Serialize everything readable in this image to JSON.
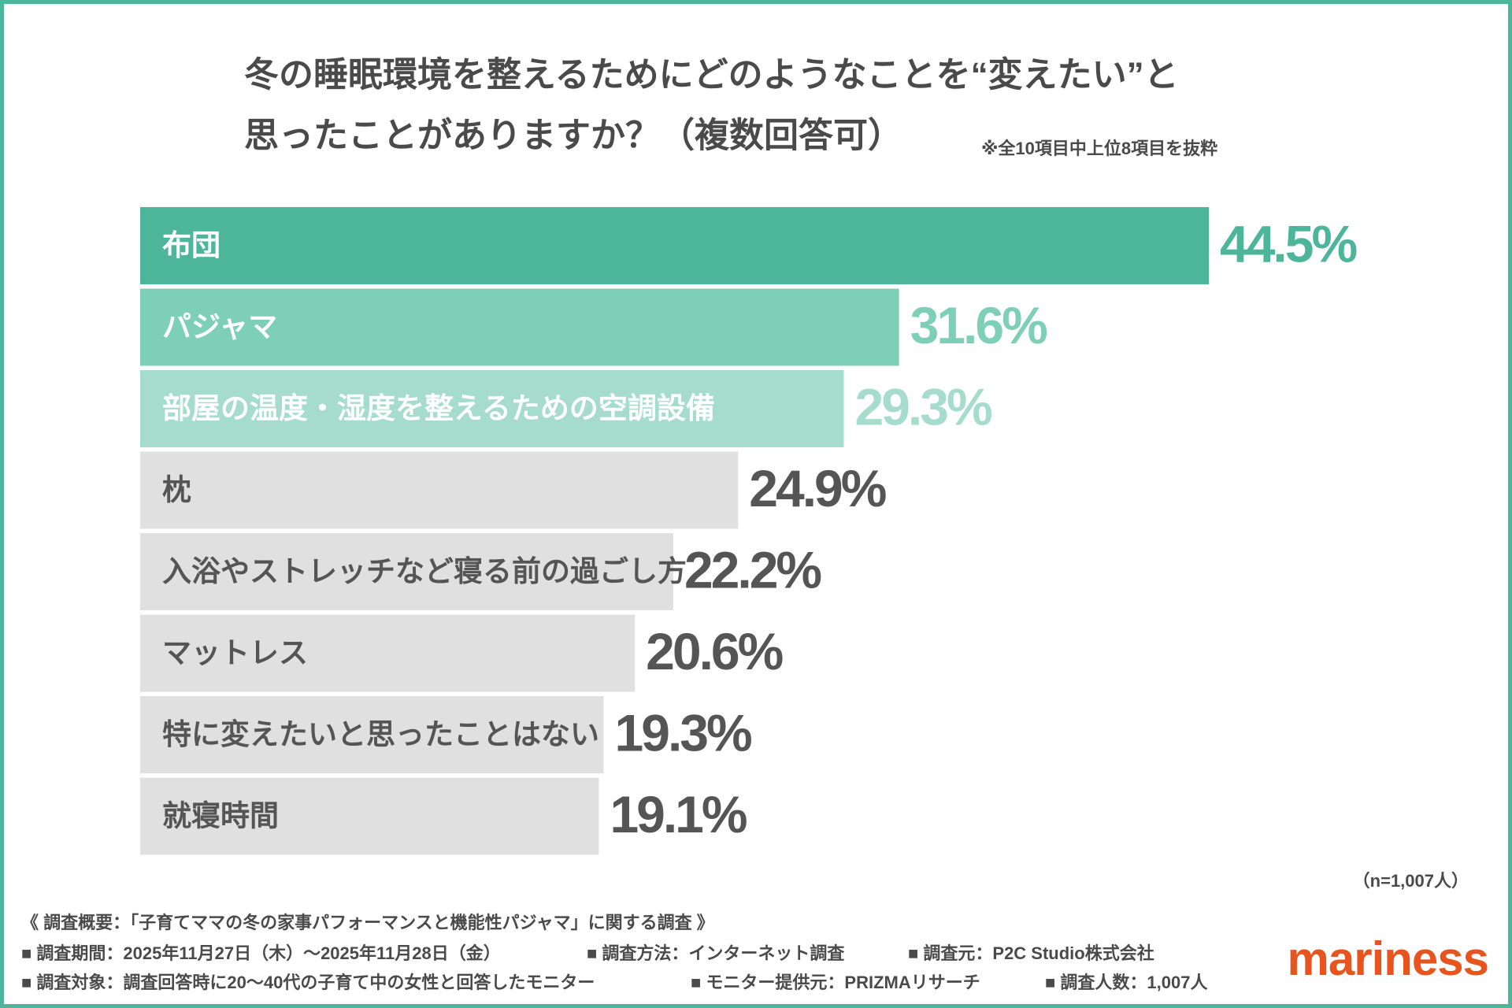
{
  "chart_data": {
    "type": "bar",
    "orientation": "horizontal",
    "title": [
      "冬の睡眠環境を整えるためにどのようなことを“変えたい”と",
      "思ったことがありますか？（複数回答可）"
    ],
    "subtitle": "※全10項目中上位8項目を抜粋",
    "categories": [
      "布団",
      "パジャマ",
      "部屋の温度・湿度を整えるための空調設備",
      "枕",
      "入浴やストレッチなど寝る前の過ごし方",
      "マットレス",
      "特に変えたいと思ったことはない",
      "就寝時間"
    ],
    "values": [
      44.5,
      31.6,
      29.3,
      24.9,
      22.2,
      20.6,
      19.3,
      19.1
    ],
    "value_labels": [
      "44.5%",
      "31.6%",
      "29.3%",
      "24.9%",
      "22.2%",
      "20.6%",
      "19.3%",
      "19.1%"
    ],
    "colors": [
      "#4db59a",
      "#7dcfb5",
      "#a6dccb",
      "#e0e0e0",
      "#e0e0e0",
      "#e0e0e0",
      "#e0e0e0",
      "#e0e0e0"
    ],
    "category_label_colors": [
      "#ffffff",
      "#ffffff",
      "#ffffff",
      "#555555",
      "#555555",
      "#555555",
      "#555555",
      "#555555"
    ],
    "value_label_colors": [
      "#4db59a",
      "#7dcfb5",
      "#a6dccb",
      "#555555",
      "#555555",
      "#555555",
      "#555555",
      "#555555"
    ],
    "sample_note": "（n=1,007人）"
  },
  "footer": {
    "heading": "《 調査概要：「子育てママの冬の家事パフォーマンスと機能性パジャマ」に関する調査 》",
    "line1": [
      "■ 調査期間：2025年11月27日（木）～2025年11月28日（金）",
      "■ 調査方法：インターネット調査",
      "■ 調査元：P2C Studio株式会社"
    ],
    "line2": [
      "■ 調査対象：調査回答時に20～40代の子育て中の女性と回答したモニター",
      "■ モニター提供元：PRIZMAリサーチ",
      "■ 調査人数：1,007人"
    ],
    "logo": "mariness"
  }
}
